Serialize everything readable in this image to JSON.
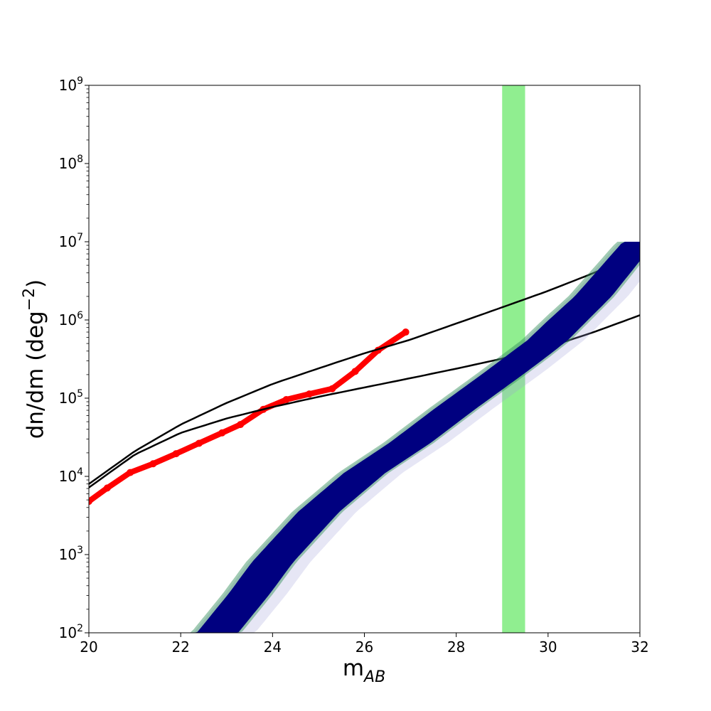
{
  "chart_data": {
    "type": "line",
    "xlabel": "m",
    "xlabel_sub": "AB",
    "ylabel_prefix": "dn/dm (deg",
    "ylabel_sup": "−2",
    "ylabel_suffix": ")",
    "xlim": [
      20,
      32
    ],
    "ylim": [
      100,
      1000000000
    ],
    "yscale": "log",
    "grid": false,
    "legend": "none",
    "x_ticks": [
      20,
      22,
      24,
      26,
      28,
      30,
      32
    ],
    "y_tick_exponents": [
      2,
      3,
      4,
      5,
      6,
      7,
      8,
      9
    ],
    "y_tick_base": "10",
    "shaded_band": {
      "x": [
        29.0,
        29.5
      ],
      "color": "#90ee90"
    },
    "series": [
      {
        "style": "red-thick",
        "color": "#ff0000",
        "x": [
          20.0,
          20.4,
          20.9,
          21.4,
          21.9,
          22.4,
          22.9,
          23.3,
          23.8,
          24.3,
          24.8,
          25.3,
          25.8,
          26.3,
          26.9
        ],
        "y": [
          4800,
          7100,
          11200,
          14500,
          19500,
          26500,
          36000,
          46000,
          72000,
          96000,
          113000,
          132000,
          220000,
          410000,
          700000
        ]
      },
      {
        "style": "black",
        "color": "#000000",
        "x": [
          20,
          21,
          22,
          23,
          24,
          25,
          26,
          27,
          28,
          29,
          30,
          31,
          32
        ],
        "y": [
          8000,
          21000,
          46000,
          87000,
          152000,
          240000,
          375000,
          560000,
          900000,
          1450000,
          2350000,
          4000000,
          7300000
        ]
      },
      {
        "style": "black",
        "color": "#000000",
        "x": [
          20,
          21,
          22,
          23,
          24,
          25,
          26,
          27,
          28,
          29,
          30,
          31,
          32
        ],
        "y": [
          7200,
          19000,
          36000,
          55000,
          77000,
          104000,
          137000,
          180000,
          238000,
          320000,
          450000,
          700000,
          1150000
        ]
      },
      {
        "style": "navy-band",
        "color": "#000080",
        "halo_colors": [
          "#2e8b57",
          "#9a9ad8"
        ],
        "x": [
          22.8,
          23.5,
          24,
          25,
          26,
          27,
          28,
          29,
          30,
          31,
          32
        ],
        "y": [
          100,
          320,
          800,
          3500,
          11000,
          27000,
          75000,
          200000,
          550000,
          2000000,
          10000000
        ],
        "halfwidth_mag": [
          0.45,
          0.45,
          0.45,
          0.45,
          0.45,
          0.45,
          0.45,
          0.45,
          0.45,
          0.4,
          0.35
        ]
      }
    ]
  }
}
